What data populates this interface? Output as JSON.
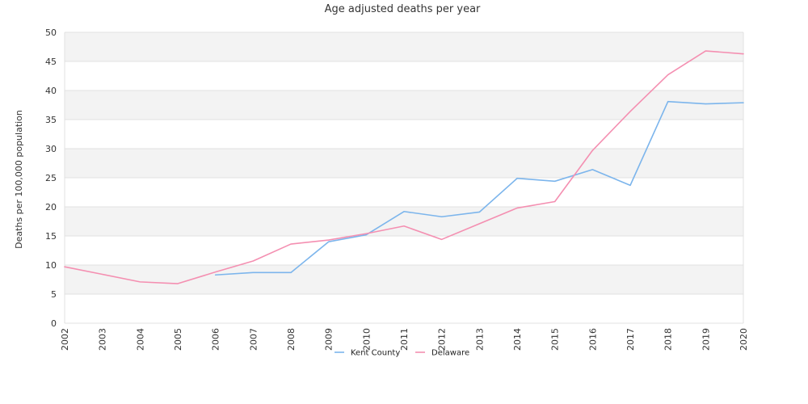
{
  "chart_data": {
    "type": "line",
    "title": "Age adjusted deaths per year",
    "ylabel": "Deaths per 100,000 population",
    "xlabel": "",
    "x": [
      "2002",
      "2003",
      "2004",
      "2005",
      "2006",
      "2007",
      "2008",
      "2009",
      "2010",
      "2011",
      "2012",
      "2013",
      "2014",
      "2015",
      "2016",
      "2017",
      "2018",
      "2019",
      "2020"
    ],
    "x_tick_labels": [
      "2002",
      "2003",
      "2004",
      "2005",
      "2006",
      "2007",
      "2008",
      "2009",
      "2010",
      "2011",
      "2012",
      "2013",
      "2014",
      "2015",
      "2016",
      "2017",
      "2018",
      "2019",
      "2020"
    ],
    "ylim": [
      0,
      50
    ],
    "y_ticks": [
      0,
      5,
      10,
      15,
      20,
      25,
      30,
      35,
      40,
      45,
      50
    ],
    "grid": "alternating horizontal bands",
    "legend_position": "bottom-center",
    "series": [
      {
        "name": "Kent County",
        "color": "#7cb5ec",
        "values": [
          null,
          null,
          null,
          null,
          8.3,
          8.7,
          8.7,
          14.0,
          15.2,
          19.2,
          18.3,
          19.1,
          24.9,
          24.4,
          26.4,
          23.7,
          38.1,
          37.7,
          37.9
        ]
      },
      {
        "name": "Delaware",
        "color": "#f48fb1",
        "values": [
          9.7,
          8.4,
          7.1,
          6.8,
          8.8,
          10.7,
          13.6,
          14.3,
          15.4,
          16.7,
          14.4,
          17.1,
          19.8,
          20.9,
          29.7,
          36.4,
          42.7,
          46.8,
          46.3
        ]
      }
    ]
  }
}
